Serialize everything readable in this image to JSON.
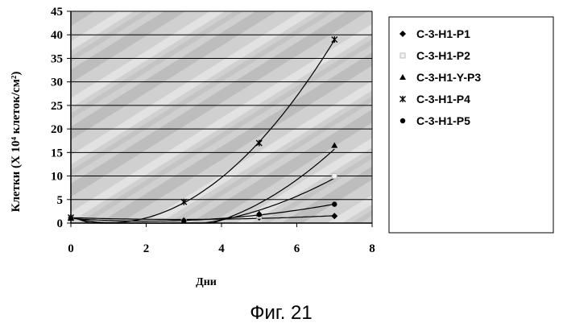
{
  "figure": {
    "caption": "Фиг. 21"
  },
  "chart_data": {
    "type": "scatter",
    "xlabel": "Дни",
    "ylabel": "Клетки (X 10⁴ клеток/см²)",
    "xlim": [
      0,
      8
    ],
    "ylim": [
      0,
      45
    ],
    "x_ticks": [
      0,
      2,
      4,
      6,
      8
    ],
    "y_ticks": [
      0,
      5,
      10,
      15,
      20,
      25,
      30,
      35,
      40,
      45
    ],
    "grid": "horizontal",
    "legend_position": "right",
    "trendlines": "polynomial",
    "series": [
      {
        "name": "C-3-H1-P1",
        "marker": "diamond",
        "x": [
          0,
          3,
          5,
          7
        ],
        "y": [
          1.2,
          0.6,
          1.2,
          1.5
        ]
      },
      {
        "name": "C-3-H1-P2",
        "marker": "square",
        "x": [
          0,
          3,
          5,
          7
        ],
        "y": [
          1.0,
          0.5,
          1.5,
          10.0
        ]
      },
      {
        "name": "C-3-H1-Y-P3",
        "marker": "triangle",
        "x": [
          0,
          3,
          5,
          7
        ],
        "y": [
          1.0,
          0.4,
          2.0,
          16.5
        ]
      },
      {
        "name": "C-3-H1-P4",
        "marker": "star",
        "x": [
          0,
          3,
          5,
          7
        ],
        "y": [
          1.2,
          4.5,
          17.0,
          39.0
        ]
      },
      {
        "name": "C-3-H1-P5",
        "marker": "circle",
        "x": [
          0,
          3,
          5,
          7
        ],
        "y": [
          1.0,
          0.5,
          1.8,
          4.0
        ]
      }
    ]
  }
}
